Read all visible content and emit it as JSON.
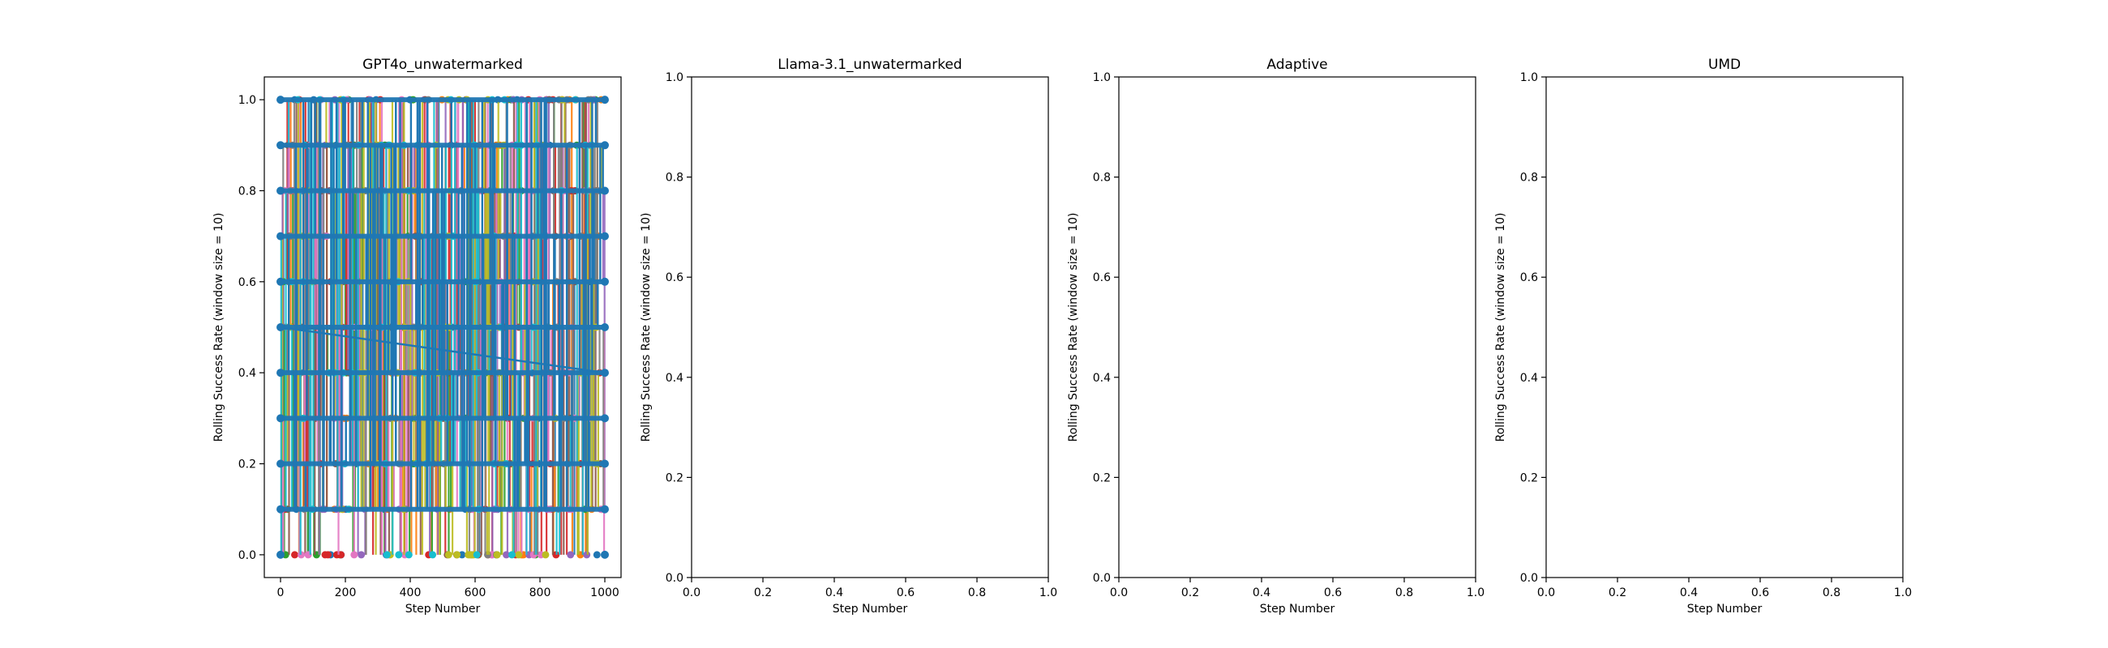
{
  "chart_data": [
    {
      "type": "line",
      "title": "GPT4o_unwatermarked",
      "xlabel": "Step Number",
      "ylabel": "Rolling Success Rate (window size = 10)",
      "xlim": [
        -50,
        1050
      ],
      "ylim": [
        -0.05,
        1.05
      ],
      "xticks": [
        "0",
        "200",
        "400",
        "600",
        "800",
        "1000"
      ],
      "yticks": [
        "0.0",
        "0.2",
        "0.4",
        "0.6",
        "0.8",
        "1.0"
      ],
      "x_range": [
        0,
        1000
      ],
      "y_levels": [
        0.0,
        0.1,
        0.2,
        0.3,
        0.4,
        0.5,
        0.6,
        0.7,
        0.8,
        0.9,
        1.0
      ],
      "series": [
        {
          "color": "#1f77b4"
        },
        {
          "color": "#ff7f0e"
        },
        {
          "color": "#2ca02c"
        },
        {
          "color": "#d62728"
        },
        {
          "color": "#9467bd"
        },
        {
          "color": "#8c564b"
        },
        {
          "color": "#e377c2"
        },
        {
          "color": "#7f7f7f"
        },
        {
          "color": "#bcbd22"
        },
        {
          "color": "#17becf"
        }
      ],
      "grid": false
    },
    {
      "type": "line",
      "title": "Llama-3.1_unwatermarked",
      "xlabel": "Step Number",
      "ylabel": "Rolling Success Rate (window size = 10)",
      "xlim": [
        0,
        1
      ],
      "ylim": [
        0,
        1
      ],
      "xticks": [
        "0.0",
        "0.2",
        "0.4",
        "0.6",
        "0.8",
        "1.0"
      ],
      "yticks": [
        "0.0",
        "0.2",
        "0.4",
        "0.6",
        "0.8",
        "1.0"
      ],
      "series": [],
      "grid": false
    },
    {
      "type": "line",
      "title": "Adaptive",
      "xlabel": "Step Number",
      "ylabel": "Rolling Success Rate (window size = 10)",
      "xlim": [
        0,
        1
      ],
      "ylim": [
        0,
        1
      ],
      "xticks": [
        "0.0",
        "0.2",
        "0.4",
        "0.6",
        "0.8",
        "1.0"
      ],
      "yticks": [
        "0.0",
        "0.2",
        "0.4",
        "0.6",
        "0.8",
        "1.0"
      ],
      "series": [],
      "grid": false
    },
    {
      "type": "line",
      "title": "UMD",
      "xlabel": "Step Number",
      "ylabel": "Rolling Success Rate (window size = 10)",
      "xlim": [
        0,
        1
      ],
      "ylim": [
        0,
        1
      ],
      "xticks": [
        "0.0",
        "0.2",
        "0.4",
        "0.6",
        "0.8",
        "1.0"
      ],
      "yticks": [
        "0.0",
        "0.2",
        "0.4",
        "0.6",
        "0.8",
        "1.0"
      ],
      "series": [],
      "grid": false
    }
  ]
}
